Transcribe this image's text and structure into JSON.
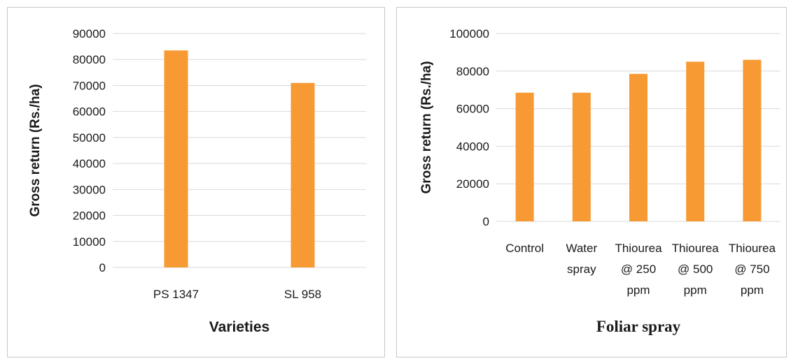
{
  "chart_data": [
    {
      "type": "bar",
      "categories": [
        "PS 1347",
        "SL 958"
      ],
      "values": [
        83500,
        71000
      ],
      "xlabel": "Varieties",
      "ylabel": "Gross return (Rs./ha)",
      "ylim": [
        0,
        90000
      ],
      "yticks": [
        0,
        10000,
        20000,
        30000,
        40000,
        50000,
        60000,
        70000,
        80000,
        90000
      ],
      "grid": true,
      "bar_color": "#F79A34"
    },
    {
      "type": "bar",
      "categories": [
        [
          "Control"
        ],
        [
          "Water",
          "spray"
        ],
        [
          "Thiourea",
          "@ 250",
          "ppm"
        ],
        [
          "Thiourea",
          "@ 500",
          "ppm"
        ],
        [
          "Thiourea",
          "@ 750",
          "ppm"
        ]
      ],
      "values": [
        68500,
        68500,
        78500,
        85000,
        86000
      ],
      "xlabel": "Foliar spray",
      "ylabel": "Gross return (Rs./ha)",
      "ylim": [
        0,
        100000
      ],
      "yticks": [
        0,
        20000,
        40000,
        60000,
        80000,
        100000
      ],
      "grid": true,
      "bar_color": "#F79A34"
    }
  ]
}
